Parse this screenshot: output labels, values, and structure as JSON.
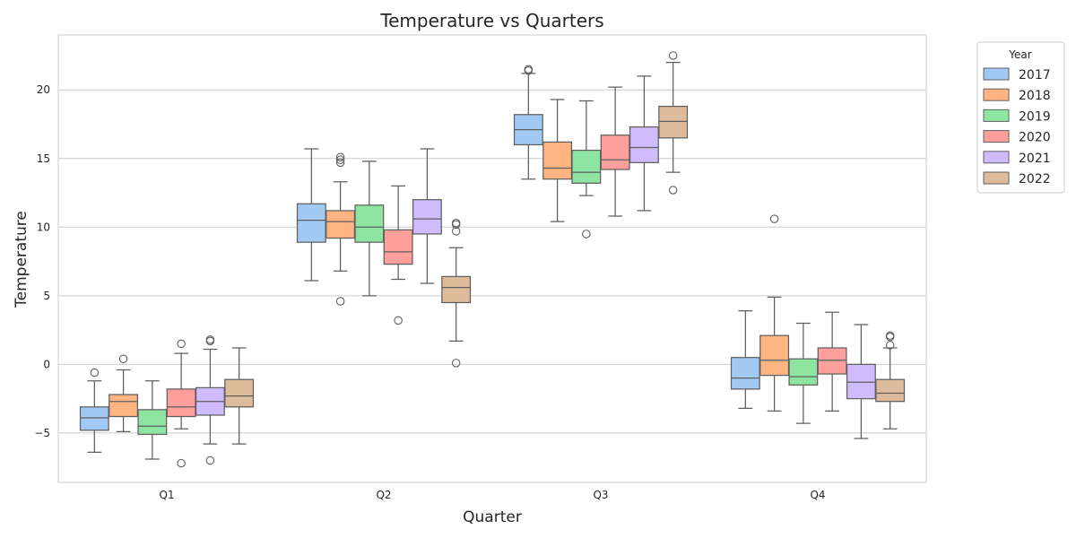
{
  "chart_data": {
    "type": "box",
    "title": "Temperature vs Quarters",
    "xlabel": "Quarter",
    "ylabel": "Temperature",
    "categories": [
      "Q1",
      "Q2",
      "Q3",
      "Q4"
    ],
    "ylim": [
      -8.6,
      24
    ],
    "yticks": [
      -5,
      0,
      5,
      10,
      15,
      20
    ],
    "grid": true,
    "legend": {
      "title": "Year",
      "position": "outside-top-right"
    },
    "series": [
      {
        "name": "2017",
        "color": "#a1c9f4",
        "boxes": [
          {
            "whislo": -6.4,
            "q1": -4.8,
            "med": -3.9,
            "q3": -3.1,
            "whishi": -1.2,
            "fliers": [
              -0.6
            ]
          },
          {
            "whislo": 6.1,
            "q1": 8.9,
            "med": 10.5,
            "q3": 11.7,
            "whishi": 15.7,
            "fliers": []
          },
          {
            "whislo": 13.5,
            "q1": 16.0,
            "med": 17.1,
            "q3": 18.2,
            "whishi": 21.2,
            "fliers": [
              21.5,
              21.4
            ]
          },
          {
            "whislo": -3.2,
            "q1": -1.8,
            "med": -1.0,
            "q3": 0.5,
            "whishi": 3.9,
            "fliers": []
          }
        ]
      },
      {
        "name": "2018",
        "color": "#ffb482",
        "boxes": [
          {
            "whislo": -4.9,
            "q1": -3.8,
            "med": -2.7,
            "q3": -2.2,
            "whishi": -0.4,
            "fliers": [
              0.4
            ]
          },
          {
            "whislo": 6.8,
            "q1": 9.2,
            "med": 10.4,
            "q3": 11.2,
            "whishi": 13.3,
            "fliers": [
              4.6,
              14.7,
              14.9,
              15.1
            ]
          },
          {
            "whislo": 10.4,
            "q1": 13.5,
            "med": 14.3,
            "q3": 16.2,
            "whishi": 19.3,
            "fliers": []
          },
          {
            "whislo": -3.4,
            "q1": -0.8,
            "med": 0.3,
            "q3": 2.1,
            "whishi": 4.9,
            "fliers": [
              10.6
            ]
          }
        ]
      },
      {
        "name": "2019",
        "color": "#8de5a1",
        "boxes": [
          {
            "whislo": -6.9,
            "q1": -5.1,
            "med": -4.5,
            "q3": -3.3,
            "whishi": -1.2,
            "fliers": []
          },
          {
            "whislo": 5.0,
            "q1": 8.9,
            "med": 10.0,
            "q3": 11.6,
            "whishi": 14.8,
            "fliers": []
          },
          {
            "whislo": 12.3,
            "q1": 13.2,
            "med": 14.0,
            "q3": 15.6,
            "whishi": 19.2,
            "fliers": [
              9.5
            ]
          },
          {
            "whislo": -4.3,
            "q1": -1.5,
            "med": -0.9,
            "q3": 0.4,
            "whishi": 3.0,
            "fliers": []
          }
        ]
      },
      {
        "name": "2020",
        "color": "#ff9f9b",
        "boxes": [
          {
            "whislo": -4.7,
            "q1": -3.8,
            "med": -3.1,
            "q3": -1.8,
            "whishi": 0.8,
            "fliers": [
              1.5,
              -7.2
            ]
          },
          {
            "whislo": 6.2,
            "q1": 7.3,
            "med": 8.2,
            "q3": 9.8,
            "whishi": 13.0,
            "fliers": [
              3.2
            ]
          },
          {
            "whislo": 10.8,
            "q1": 14.2,
            "med": 14.9,
            "q3": 16.7,
            "whishi": 20.2,
            "fliers": []
          },
          {
            "whislo": -3.4,
            "q1": -0.7,
            "med": 0.3,
            "q3": 1.2,
            "whishi": 3.8,
            "fliers": []
          }
        ]
      },
      {
        "name": "2021",
        "color": "#d0bbff",
        "boxes": [
          {
            "whislo": -5.8,
            "q1": -3.7,
            "med": -2.7,
            "q3": -1.7,
            "whishi": 1.1,
            "fliers": [
              1.7,
              1.8,
              -7.0
            ]
          },
          {
            "whislo": 5.9,
            "q1": 9.5,
            "med": 10.6,
            "q3": 12.0,
            "whishi": 15.7,
            "fliers": []
          },
          {
            "whislo": 11.2,
            "q1": 14.7,
            "med": 15.8,
            "q3": 17.3,
            "whishi": 21.0,
            "fliers": []
          },
          {
            "whislo": -5.4,
            "q1": -2.5,
            "med": -1.3,
            "q3": 0.0,
            "whishi": 2.9,
            "fliers": []
          }
        ]
      },
      {
        "name": "2022",
        "color": "#debb9b",
        "boxes": [
          {
            "whislo": -5.8,
            "q1": -3.1,
            "med": -2.3,
            "q3": -1.1,
            "whishi": 1.2,
            "fliers": []
          },
          {
            "whislo": 1.7,
            "q1": 4.5,
            "med": 5.6,
            "q3": 6.4,
            "whishi": 8.5,
            "fliers": [
              10.2,
              10.3,
              9.7,
              0.1
            ]
          },
          {
            "whislo": 14.0,
            "q1": 16.5,
            "med": 17.7,
            "q3": 18.8,
            "whishi": 22.0,
            "fliers": [
              22.5,
              12.7
            ]
          },
          {
            "whislo": -4.7,
            "q1": -2.7,
            "med": -2.1,
            "q3": -1.1,
            "whishi": 1.2,
            "fliers": [
              2.1,
              2.0,
              1.4
            ]
          }
        ]
      }
    ]
  }
}
